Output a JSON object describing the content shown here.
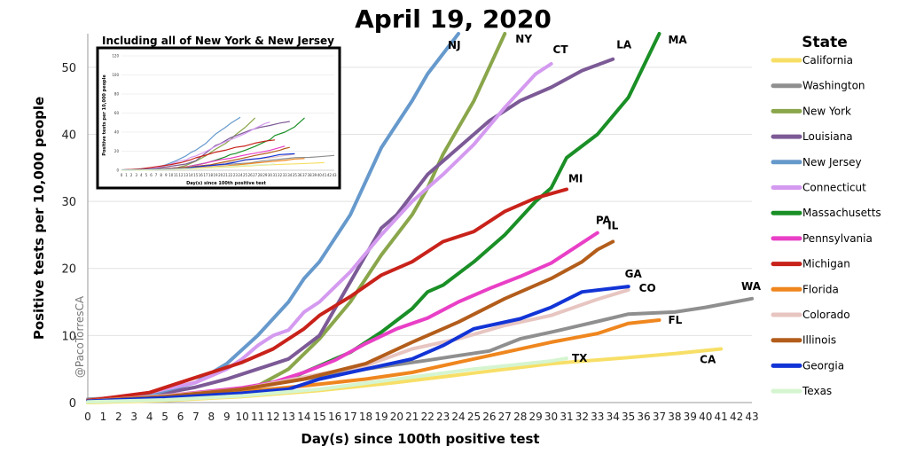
{
  "chart_data": {
    "type": "line",
    "title": "April 19, 2020",
    "xlabel": "Day(s) since 100th positive test",
    "ylabel": "Positive tests per 10,000 people",
    "xlim": [
      0,
      43
    ],
    "ylim": [
      0,
      55
    ],
    "x_ticks": [
      0,
      1,
      2,
      3,
      4,
      5,
      6,
      7,
      8,
      9,
      10,
      11,
      12,
      13,
      14,
      15,
      16,
      17,
      18,
      19,
      20,
      21,
      22,
      23,
      24,
      25,
      26,
      27,
      28,
      29,
      30,
      31,
      32,
      33,
      34,
      35,
      36,
      37,
      38,
      39,
      40,
      41,
      42,
      43
    ],
    "y_ticks": [
      0,
      10,
      20,
      30,
      40,
      50
    ],
    "grid": "horizontal",
    "legend_title": "State",
    "legend_position": "right",
    "credit": "@PacoTorresCA",
    "series": [
      {
        "name": "California",
        "label": "CA",
        "color": "#f7df67",
        "points": [
          [
            0,
            0
          ],
          [
            5,
            0.3
          ],
          [
            10,
            0.9
          ],
          [
            15,
            1.8
          ],
          [
            20,
            3
          ],
          [
            25,
            4.4
          ],
          [
            30,
            5.8
          ],
          [
            35,
            6.7
          ],
          [
            38,
            7.3
          ],
          [
            41,
            8
          ]
        ]
      },
      {
        "name": "Washington",
        "label": "WA",
        "color": "#8f8f8f",
        "points": [
          [
            0,
            0.5
          ],
          [
            5,
            1
          ],
          [
            10,
            2
          ],
          [
            14,
            3.5
          ],
          [
            18,
            5
          ],
          [
            22,
            6.3
          ],
          [
            26,
            7.7
          ],
          [
            28,
            9.5
          ],
          [
            30,
            10.5
          ],
          [
            33,
            12.1
          ],
          [
            35,
            13.2
          ],
          [
            38,
            13.5
          ],
          [
            40,
            14.2
          ],
          [
            43,
            15.5
          ]
        ]
      },
      {
        "name": "New York",
        "label": "NY",
        "color": "#8aa64b",
        "points": [
          [
            0,
            0.2
          ],
          [
            4,
            0.6
          ],
          [
            8,
            1.4
          ],
          [
            11,
            2.5
          ],
          [
            13,
            5
          ],
          [
            15,
            9.5
          ],
          [
            17,
            15
          ],
          [
            19,
            22
          ],
          [
            21,
            28
          ],
          [
            22,
            32
          ],
          [
            23,
            37
          ],
          [
            24,
            41
          ],
          [
            25,
            45
          ],
          [
            26,
            50
          ],
          [
            27,
            55
          ]
        ]
      },
      {
        "name": "Louisiana",
        "label": "LA",
        "color": "#7c5a96",
        "points": [
          [
            0,
            0.3
          ],
          [
            4,
            1
          ],
          [
            7,
            2.3
          ],
          [
            9,
            3.5
          ],
          [
            11,
            5
          ],
          [
            13,
            6.5
          ],
          [
            15,
            10
          ],
          [
            17,
            18
          ],
          [
            19,
            26
          ],
          [
            20,
            28
          ],
          [
            21,
            31
          ],
          [
            22,
            34
          ],
          [
            24,
            38
          ],
          [
            26,
            42
          ],
          [
            28,
            45
          ],
          [
            30,
            47
          ],
          [
            32,
            49.5
          ],
          [
            34,
            51.2
          ]
        ]
      },
      {
        "name": "New Jersey",
        "label": "NJ",
        "color": "#6699cc",
        "points": [
          [
            0,
            0.3
          ],
          [
            4,
            1.2
          ],
          [
            7,
            3
          ],
          [
            9,
            5.8
          ],
          [
            11,
            10
          ],
          [
            13,
            15
          ],
          [
            14,
            18.5
          ],
          [
            15,
            21
          ],
          [
            17,
            28
          ],
          [
            19,
            38
          ],
          [
            21,
            45
          ],
          [
            22,
            49
          ],
          [
            24,
            55.5
          ]
        ]
      },
      {
        "name": "Connecticut",
        "label": "CT",
        "color": "#d49af0",
        "points": [
          [
            0,
            0.3
          ],
          [
            4,
            1.5
          ],
          [
            7,
            3
          ],
          [
            9,
            5
          ],
          [
            10,
            6.5
          ],
          [
            11,
            8.5
          ],
          [
            12,
            10
          ],
          [
            13,
            10.8
          ],
          [
            14,
            13.5
          ],
          [
            15,
            15
          ],
          [
            17,
            19.5
          ],
          [
            19,
            25
          ],
          [
            21,
            30
          ],
          [
            23,
            34
          ],
          [
            25,
            38.5
          ],
          [
            27,
            44
          ],
          [
            29,
            49
          ],
          [
            30,
            50.5
          ]
        ]
      },
      {
        "name": "Massachusetts",
        "label": "MA",
        "color": "#1a8f26",
        "points": [
          [
            0,
            0.2
          ],
          [
            5,
            0.7
          ],
          [
            10,
            2
          ],
          [
            13,
            3.5
          ],
          [
            15,
            5.5
          ],
          [
            17,
            7.5
          ],
          [
            19,
            10.5
          ],
          [
            21,
            14
          ],
          [
            22,
            16.5
          ],
          [
            23,
            17.5
          ],
          [
            25,
            21
          ],
          [
            27,
            25
          ],
          [
            29,
            30
          ],
          [
            30,
            32
          ],
          [
            31,
            36.5
          ],
          [
            33,
            40
          ],
          [
            35,
            45.5
          ],
          [
            37,
            55
          ]
        ]
      },
      {
        "name": "Pennsylvania",
        "label": "PA",
        "color": "#e93fc6",
        "points": [
          [
            0,
            0.2
          ],
          [
            5,
            1
          ],
          [
            10,
            2.2
          ],
          [
            12,
            3
          ],
          [
            14,
            4.5
          ],
          [
            16,
            6.3
          ],
          [
            18,
            8.8
          ],
          [
            20,
            11
          ],
          [
            22,
            12.6
          ],
          [
            24,
            15
          ],
          [
            26,
            17
          ],
          [
            28,
            18.8
          ],
          [
            30,
            20.8
          ],
          [
            33,
            25.3
          ]
        ]
      },
      {
        "name": "Michigan",
        "label": "MI",
        "color": "#c8221a",
        "points": [
          [
            0,
            0.3
          ],
          [
            4,
            1.5
          ],
          [
            6,
            3
          ],
          [
            8,
            4.5
          ],
          [
            10,
            6
          ],
          [
            12,
            8
          ],
          [
            14,
            11
          ],
          [
            15,
            13
          ],
          [
            17,
            15.8
          ],
          [
            19,
            19
          ],
          [
            21,
            21
          ],
          [
            23,
            24
          ],
          [
            25,
            25.5
          ],
          [
            27,
            28.5
          ],
          [
            29,
            30.5
          ],
          [
            31,
            31.8
          ]
        ]
      },
      {
        "name": "Florida",
        "label": "FL",
        "color": "#ef861e",
        "points": [
          [
            0,
            0.2
          ],
          [
            5,
            0.8
          ],
          [
            10,
            1.6
          ],
          [
            14,
            2.5
          ],
          [
            18,
            3.5
          ],
          [
            21,
            4.5
          ],
          [
            24,
            6
          ],
          [
            27,
            7.5
          ],
          [
            30,
            9
          ],
          [
            33,
            10.3
          ],
          [
            35,
            11.8
          ],
          [
            37,
            12.3
          ]
        ]
      },
      {
        "name": "Colorado",
        "label": "CO",
        "color": "#e7c5c1",
        "points": [
          [
            0,
            0.2
          ],
          [
            5,
            1
          ],
          [
            10,
            2
          ],
          [
            14,
            3.8
          ],
          [
            18,
            5.5
          ],
          [
            21,
            8
          ],
          [
            24,
            9.5
          ],
          [
            27,
            11.5
          ],
          [
            30,
            13
          ],
          [
            33,
            15.4
          ],
          [
            35,
            16.8
          ]
        ]
      },
      {
        "name": "Illinois",
        "label": "IL",
        "color": "#b35d1b",
        "points": [
          [
            0,
            0.2
          ],
          [
            5,
            0.9
          ],
          [
            10,
            2
          ],
          [
            14,
            3.5
          ],
          [
            18,
            5.8
          ],
          [
            21,
            9
          ],
          [
            24,
            12
          ],
          [
            27,
            15.5
          ],
          [
            30,
            18.5
          ],
          [
            32,
            21
          ],
          [
            33,
            22.8
          ],
          [
            34,
            24
          ]
        ]
      },
      {
        "name": "Georgia",
        "label": "GA",
        "color": "#1234d6",
        "points": [
          [
            0,
            0.2
          ],
          [
            5,
            0.7
          ],
          [
            10,
            1.4
          ],
          [
            13,
            2
          ],
          [
            15,
            3.5
          ],
          [
            18,
            5
          ],
          [
            21,
            6.5
          ],
          [
            23,
            8.5
          ],
          [
            25,
            11
          ],
          [
            28,
            12.5
          ],
          [
            30,
            14.2
          ],
          [
            32,
            16.5
          ],
          [
            35,
            17.3
          ]
        ]
      },
      {
        "name": "Texas",
        "label": "TX",
        "color": "#d5f5d0",
        "points": [
          [
            0,
            0.1
          ],
          [
            5,
            0.4
          ],
          [
            10,
            1
          ],
          [
            15,
            2
          ],
          [
            20,
            3.5
          ],
          [
            25,
            5
          ],
          [
            30,
            6.2
          ],
          [
            31,
            6.6
          ]
        ]
      }
    ],
    "inset": {
      "title": "Including all of New York & New Jersey",
      "xlabel": "Day(s) since 100th positive test",
      "ylabel": "Positive tests per 10,000 people",
      "y_ticks": [
        0,
        20,
        40,
        60,
        80,
        100,
        120
      ],
      "x_ticks": [
        0,
        1,
        2,
        3,
        4,
        5,
        6,
        7,
        8,
        9,
        10,
        11,
        12,
        13,
        14,
        15,
        16,
        17,
        18,
        19,
        20,
        21,
        22,
        23,
        24,
        25,
        26,
        27,
        28,
        29,
        30,
        31,
        32,
        33,
        34,
        35,
        36,
        37,
        38,
        39,
        40,
        41,
        42,
        43
      ],
      "xlim": [
        0,
        43
      ],
      "ylim": [
        0,
        120
      ]
    }
  }
}
